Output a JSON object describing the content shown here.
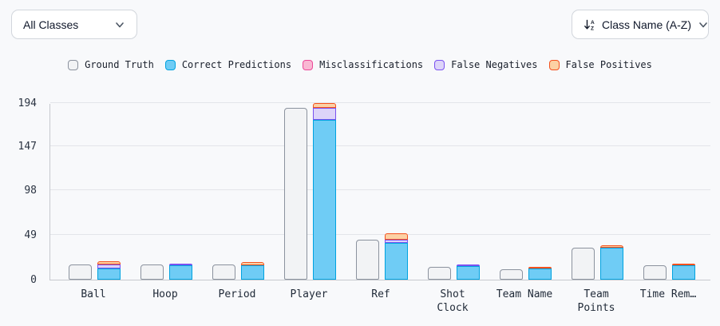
{
  "toolbar": {
    "class_filter": {
      "value": "All Classes"
    },
    "sort": {
      "value": "Class Name (A-Z)",
      "icon": "sort-a-to-z"
    }
  },
  "legend": [
    {
      "label": "Ground Truth",
      "fill": "#f2f3f5",
      "border": "#8b929e"
    },
    {
      "label": "Correct Predictions",
      "fill": "#6fccf5",
      "border": "#00a3e0"
    },
    {
      "label": "Misclassifications",
      "fill": "#f9b8d3",
      "border": "#ec4899"
    },
    {
      "label": "False Negatives",
      "fill": "#ddd4f9",
      "border": "#7a52f0"
    },
    {
      "label": "False Positives",
      "fill": "#fcd1a4",
      "border": "#f4511e"
    }
  ],
  "chart_data": {
    "type": "bar",
    "title": "",
    "categories": [
      "Ball",
      "Hoop",
      "Period",
      "Player",
      "Ref",
      "Shot Clock",
      "Team Name",
      "Team Points",
      "Time Rem…"
    ],
    "series": [
      {
        "name": "Ground Truth",
        "values": [
          17,
          17,
          17,
          189,
          44,
          14,
          11,
          35,
          16
        ]
      },
      {
        "name": "Correct Predictions",
        "values": [
          12,
          16,
          16,
          176,
          40,
          15,
          12,
          35,
          16
        ]
      },
      {
        "name": "Misclassifications",
        "values": [
          0,
          0,
          0,
          0,
          0,
          0,
          0,
          0,
          0
        ]
      },
      {
        "name": "False Negatives",
        "values": [
          5,
          2,
          0,
          13,
          4,
          2,
          0,
          0,
          0
        ]
      },
      {
        "name": "False Positives",
        "values": [
          3,
          0,
          3,
          5,
          7,
          0,
          2,
          3,
          2
        ]
      }
    ],
    "grouping": "ground-truth bar beside stacked predictions bar per category",
    "stack_order_bottom_to_top": [
      "Correct Predictions",
      "Misclassifications",
      "False Negatives",
      "False Positives"
    ],
    "yticks": [
      0,
      49,
      98,
      147,
      194
    ],
    "ylim": [
      0,
      194
    ],
    "xlabel": "",
    "ylabel": "",
    "grid": true,
    "legend_position": "top"
  }
}
